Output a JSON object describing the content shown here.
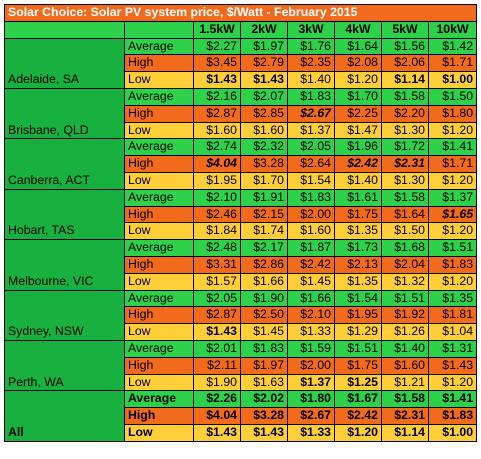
{
  "title": "Solar Choice: Solar PV system price, $/Watt - February 2015",
  "columns": [
    "1.5kW",
    "2kW",
    "3kW",
    "4kW",
    "5kW",
    "10kW"
  ],
  "row_labels": {
    "average": "Average",
    "high": "High",
    "low": "Low"
  },
  "colors": {
    "average": "#2dd24a",
    "high": "#f26b1d",
    "low": "#ffcf3a",
    "city": "#18b13f"
  },
  "cities": [
    {
      "name": "Adelaide, SA",
      "average": [
        "$2.27",
        "$1.97",
        "$1.76",
        "$1.64",
        "$1.56",
        "$1.42"
      ],
      "high": [
        "$3.45",
        "$2.79",
        "$2.35",
        "$2.08",
        "$2.06",
        "$1.71"
      ],
      "low": [
        "$1.43",
        "$1.43",
        "$1.40",
        "$1.20",
        "$1.14",
        "$1.00"
      ],
      "emph": {
        "low": [
          "b",
          "b",
          "",
          "",
          "b",
          "b"
        ]
      }
    },
    {
      "name": "Brisbane, QLD",
      "average": [
        "$2.16",
        "$2.07",
        "$1.83",
        "$1.70",
        "$1.58",
        "$1.50"
      ],
      "high": [
        "$2.87",
        "$2.85",
        "$2.67",
        "$2.25",
        "$2.20",
        "$1.80"
      ],
      "low": [
        "$1.60",
        "$1.60",
        "$1.37",
        "$1.47",
        "$1.30",
        "$1.20"
      ],
      "emph": {
        "high": [
          "",
          "",
          "bi",
          "",
          "",
          ""
        ]
      }
    },
    {
      "name": "Canberra, ACT",
      "average": [
        "$2.74",
        "$2.32",
        "$2.05",
        "$1.96",
        "$1.72",
        "$1.41"
      ],
      "high": [
        "$4.04",
        "$3.28",
        "$2.64",
        "$2.42",
        "$2.31",
        "$1.71"
      ],
      "low": [
        "$1.95",
        "$1.70",
        "$1.54",
        "$1.40",
        "$1.30",
        "$1.20"
      ],
      "emph": {
        "high": [
          "bi",
          "",
          "",
          "bi",
          "bi",
          ""
        ]
      }
    },
    {
      "name": "Hobart, TAS",
      "average": [
        "$2.10",
        "$1.91",
        "$1.83",
        "$1.61",
        "$1.58",
        "$1.37"
      ],
      "high": [
        "$2.46",
        "$2.15",
        "$2.00",
        "$1.75",
        "$1.64",
        "$1.65"
      ],
      "low": [
        "$1.84",
        "$1.74",
        "$1.60",
        "$1.35",
        "$1.50",
        "$1.20"
      ],
      "emph": {
        "high": [
          "",
          "",
          "",
          "",
          "",
          "bi"
        ]
      }
    },
    {
      "name": "Melbourne, VIC",
      "average": [
        "$2.48",
        "$2.17",
        "$1.87",
        "$1.73",
        "$1.68",
        "$1.51"
      ],
      "high": [
        "$3.31",
        "$2.86",
        "$2.42",
        "$2.13",
        "$2.04",
        "$1.83"
      ],
      "low": [
        "$1.57",
        "$1.66",
        "$1.45",
        "$1.35",
        "$1.32",
        "$1.20"
      ],
      "emph": {}
    },
    {
      "name": "Sydney, NSW",
      "average": [
        "$2.05",
        "$1.90",
        "$1.66",
        "$1.54",
        "$1.51",
        "$1.35"
      ],
      "high": [
        "$2.87",
        "$2.50",
        "$2.10",
        "$1.95",
        "$1.92",
        "$1.81"
      ],
      "low": [
        "$1.43",
        "$1.45",
        "$1.33",
        "$1.29",
        "$1.26",
        "$1.04"
      ],
      "emph": {
        "low": [
          "b",
          "",
          "",
          "",
          "",
          ""
        ]
      }
    },
    {
      "name": "Perth, WA",
      "average": [
        "$2.01",
        "$1.83",
        "$1.59",
        "$1.51",
        "$1.40",
        "$1.31"
      ],
      "high": [
        "$2.11",
        "$1.97",
        "$2.00",
        "$1.75",
        "$1.60",
        "$1.43"
      ],
      "low": [
        "$1.90",
        "$1.63",
        "$1.37",
        "$1.25",
        "$1.21",
        "$1.20"
      ],
      "emph": {
        "low": [
          "",
          "",
          "b",
          "b",
          "",
          ""
        ]
      }
    }
  ],
  "all": {
    "name": "All",
    "average": [
      "$2.26",
      "$2.02",
      "$1.80",
      "$1.67",
      "$1.58",
      "$1.41"
    ],
    "high": [
      "$4.04",
      "$3.28",
      "$2.67",
      "$2.42",
      "$2.31",
      "$1.83"
    ],
    "low": [
      "$1.43",
      "$1.43",
      "$1.33",
      "$1.20",
      "$1.14",
      "$1.00"
    ]
  }
}
